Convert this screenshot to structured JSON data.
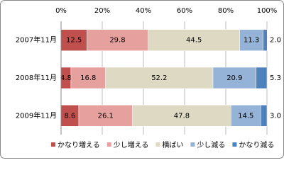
{
  "chart_data": {
    "type": "stacked_bar_horizontal",
    "categories": [
      "2007年11月",
      "2008年11月",
      "2009年11月"
    ],
    "series": [
      {
        "name": "かなり増える",
        "color": "#c0504d",
        "values": [
          12.5,
          4.8,
          8.6
        ],
        "value_labels": [
          "12.5",
          "4.8",
          "8.6"
        ]
      },
      {
        "name": "少し増える",
        "color": "#e6a09e",
        "values": [
          29.8,
          16.8,
          26.1
        ],
        "value_labels": [
          "29.8",
          "16.8",
          "26.1"
        ]
      },
      {
        "name": "横ばい",
        "color": "#ddd9c3",
        "values": [
          44.5,
          52.2,
          47.8
        ],
        "value_labels": [
          "44.5",
          "52.2",
          "47.8"
        ]
      },
      {
        "name": "少し減る",
        "color": "#95b3d7",
        "values": [
          11.3,
          20.9,
          14.5
        ],
        "value_labels": [
          "11.3",
          "20.9",
          "14.5"
        ]
      },
      {
        "name": "かなり減る",
        "color": "#4f81bd",
        "values": [
          2.0,
          5.3,
          3.0
        ],
        "value_labels": [
          "2.0",
          "5.3",
          "3.0"
        ]
      }
    ],
    "xlim": [
      0,
      100
    ],
    "xticks": [
      {
        "value": 0,
        "label": "0%"
      },
      {
        "value": 20,
        "label": "20%"
      },
      {
        "value": 40,
        "label": "40%"
      },
      {
        "value": 60,
        "label": "60%"
      },
      {
        "value": 80,
        "label": "80%"
      },
      {
        "value": 100,
        "label": "100%"
      }
    ],
    "grid": true,
    "legend": "bottom"
  }
}
